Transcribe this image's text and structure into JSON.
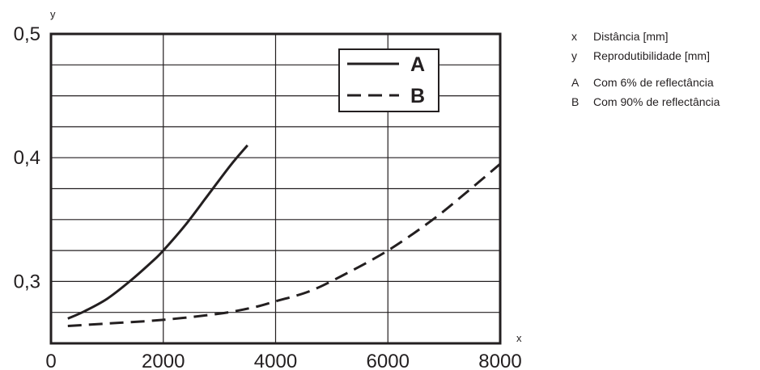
{
  "chart_data": {
    "type": "line",
    "xlabel": "x",
    "ylabel": "y",
    "xlim": [
      0,
      8000
    ],
    "ylim": [
      0.25,
      0.5
    ],
    "x_ticks": [
      "0",
      "2000",
      "4000",
      "6000",
      "8000"
    ],
    "y_ticks": [
      "0,3",
      "0,4",
      "0,5"
    ],
    "grid": true,
    "legend_position": "top-right",
    "series": [
      {
        "name": "A",
        "style": "solid",
        "x": [
          300,
          600,
          1000,
          1400,
          1800,
          2000,
          2400,
          2800,
          3200,
          3500
        ],
        "y": [
          0.27,
          0.276,
          0.286,
          0.3,
          0.316,
          0.325,
          0.346,
          0.37,
          0.394,
          0.41
        ]
      },
      {
        "name": "B",
        "style": "dashed",
        "x": [
          300,
          1000,
          2000,
          3000,
          3600,
          4000,
          4600,
          5200,
          6000,
          6800,
          7400,
          8000
        ],
        "y": [
          0.264,
          0.266,
          0.269,
          0.274,
          0.279,
          0.284,
          0.292,
          0.305,
          0.325,
          0.35,
          0.372,
          0.395
        ]
      }
    ]
  },
  "key": {
    "x": {
      "letter": "x",
      "text": "Distância [mm]"
    },
    "y": {
      "letter": "y",
      "text": "Reprodutibilidade [mm]"
    },
    "A": {
      "letter": "A",
      "text": "Com 6% de reflectância"
    },
    "B": {
      "letter": "B",
      "text": "Com 90% de reflectância"
    }
  },
  "colors": {
    "ink": "#231f20"
  }
}
